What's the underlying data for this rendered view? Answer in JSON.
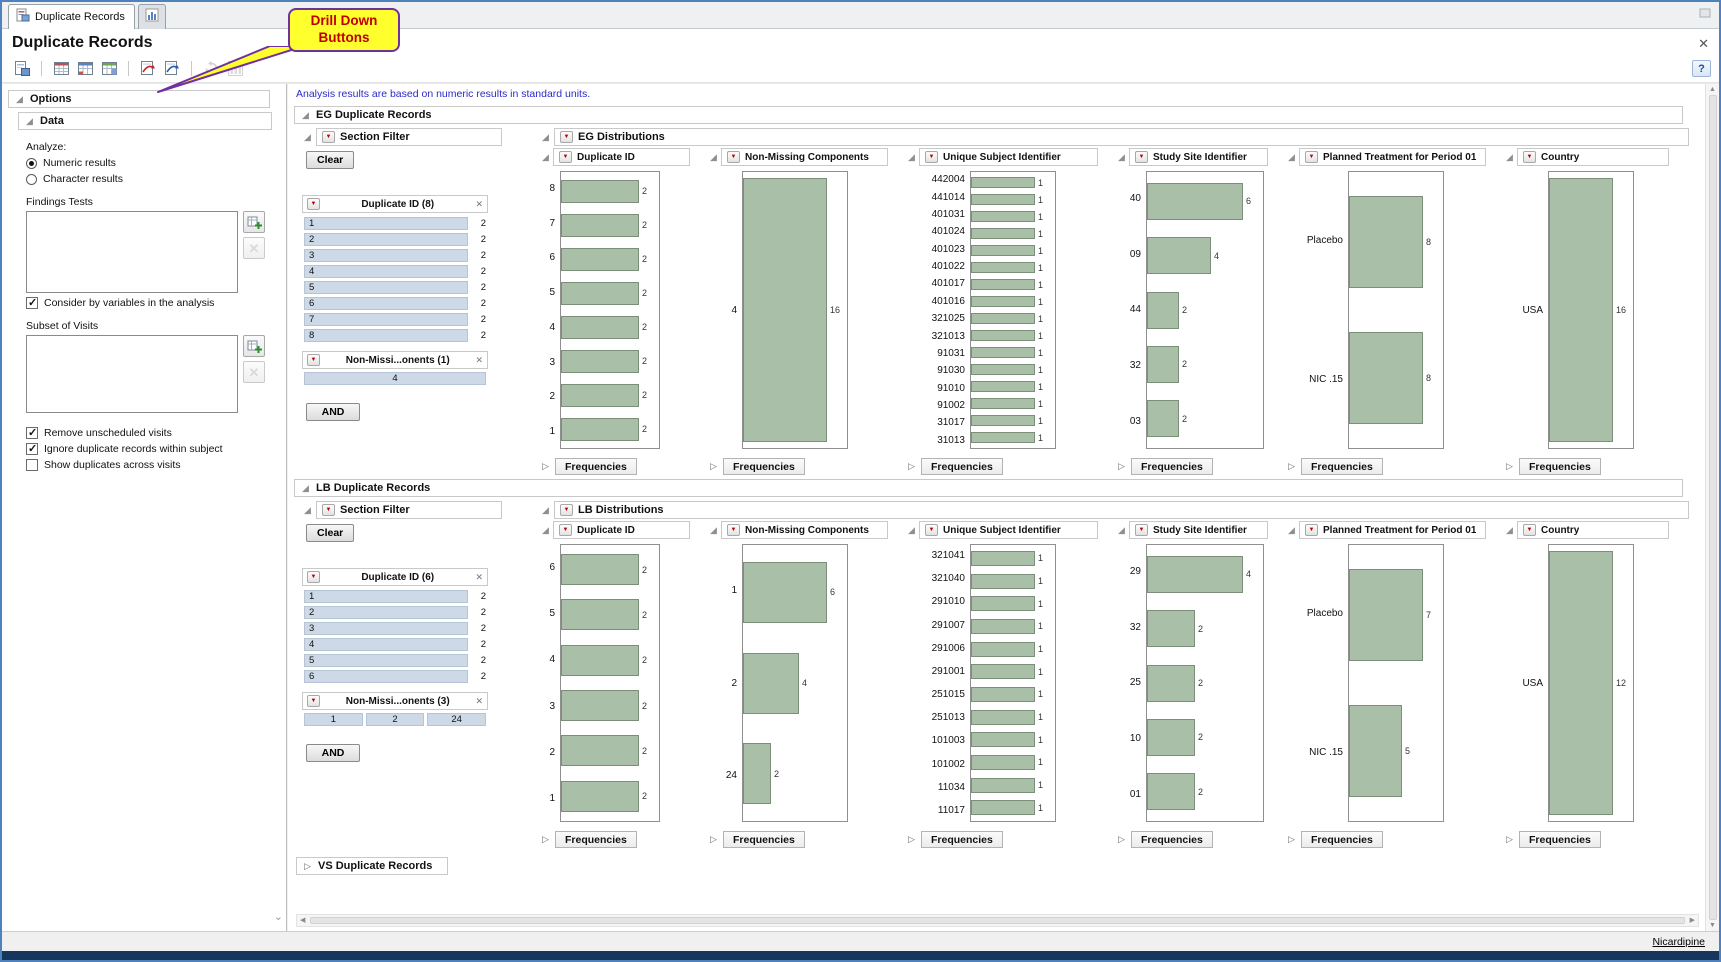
{
  "window": {
    "title": "Duplicate Records",
    "close": "✕",
    "tabs": [
      {
        "label": "Duplicate Records",
        "icon": "report-tab-icon",
        "active": true
      },
      {
        "label": "",
        "icon": "chart-tab-icon",
        "active": false
      }
    ]
  },
  "callout": {
    "text": "Drill Down Buttons"
  },
  "toolbar": {
    "help": "?",
    "groups": [
      {
        "icons": [
          {
            "name": "create-report-icon",
            "disabled": false
          }
        ]
      },
      {
        "icons": [
          {
            "name": "data-table-icon",
            "disabled": false
          },
          {
            "name": "summary-table-icon",
            "disabled": false
          },
          {
            "name": "report-table-icon",
            "disabled": false
          }
        ]
      },
      {
        "icons": [
          {
            "name": "drill-down-subject-icon",
            "disabled": false
          },
          {
            "name": "drill-down-record-icon",
            "disabled": false
          }
        ]
      },
      {
        "icons": [
          {
            "name": "refresh-icon",
            "disabled": true
          },
          {
            "name": "graph-builder-icon",
            "disabled": true
          }
        ]
      }
    ]
  },
  "options_panel": {
    "title": "Options",
    "data_section": {
      "title": "Data",
      "analyze_label": "Analyze:",
      "radios": [
        {
          "label": "Numeric results",
          "selected": true
        },
        {
          "label": "Character results",
          "selected": false
        }
      ],
      "findings_tests_label": "Findings Tests",
      "consider_checkbox": {
        "label": "Consider by variables in the analysis",
        "checked": true
      },
      "subset_label": "Subset of Visits",
      "checkboxes": [
        {
          "label": "Remove unscheduled visits",
          "checked": true
        },
        {
          "label": "Ignore duplicate records within subject",
          "checked": true
        },
        {
          "label": "Show duplicates across visits",
          "checked": false
        }
      ]
    }
  },
  "main": {
    "note": "Analysis results are based on numeric results in standard units.",
    "frequencies_label": "Frequencies",
    "sections": [
      {
        "title": "EG Duplicate Records",
        "filter": {
          "title": "Section Filter",
          "clear_label": "Clear",
          "and_label": "AND",
          "groups": [
            {
              "title": "Duplicate ID (8)",
              "rows": [
                [
                  "1",
                  2
                ],
                [
                  "2",
                  2
                ],
                [
                  "3",
                  2
                ],
                [
                  "4",
                  2
                ],
                [
                  "5",
                  2
                ],
                [
                  "6",
                  2
                ],
                [
                  "7",
                  2
                ],
                [
                  "8",
                  2
                ]
              ]
            },
            {
              "title": "Non-Missi...onents (1)",
              "cells": [
                "4"
              ]
            }
          ]
        },
        "distributions": {
          "title": "EG Distributions",
          "charts": [
            {
              "type": "bar",
              "label": "Duplicate ID",
              "categories": [
                "8",
                "7",
                "6",
                "5",
                "4",
                "3",
                "2",
                "1"
              ],
              "values": [
                2,
                2,
                2,
                2,
                2,
                2,
                2,
                2
              ]
            },
            {
              "type": "bar",
              "label": "Non-Missing Components",
              "categories": [
                "4"
              ],
              "values": [
                16
              ]
            },
            {
              "type": "bar",
              "label": "Unique Subject Identifier",
              "categories": [
                "442004",
                "441014",
                "401031",
                "401024",
                "401023",
                "401022",
                "401017",
                "401016",
                "321025",
                "321013",
                "91031",
                "91030",
                "91010",
                "91002",
                "31017",
                "31013"
              ],
              "values": [
                1,
                1,
                1,
                1,
                1,
                1,
                1,
                1,
                1,
                1,
                1,
                1,
                1,
                1,
                1,
                1
              ]
            },
            {
              "type": "bar",
              "label": "Study Site Identifier",
              "categories": [
                "40",
                "09",
                "44",
                "32",
                "03"
              ],
              "values": [
                6,
                4,
                2,
                2,
                2
              ]
            },
            {
              "type": "bar",
              "label": "Planned Treatment for Period 01",
              "categories": [
                "Placebo",
                "NIC .15"
              ],
              "values": [
                8,
                8
              ]
            },
            {
              "type": "bar",
              "label": "Country",
              "categories": [
                "USA"
              ],
              "values": [
                16
              ]
            }
          ]
        }
      },
      {
        "title": "LB Duplicate Records",
        "filter": {
          "title": "Section Filter",
          "clear_label": "Clear",
          "and_label": "AND",
          "groups": [
            {
              "title": "Duplicate ID (6)",
              "rows": [
                [
                  "1",
                  2
                ],
                [
                  "2",
                  2
                ],
                [
                  "3",
                  2
                ],
                [
                  "4",
                  2
                ],
                [
                  "5",
                  2
                ],
                [
                  "6",
                  2
                ]
              ]
            },
            {
              "title": "Non-Missi...onents (3)",
              "cells": [
                "1",
                "2",
                "24"
              ]
            }
          ]
        },
        "distributions": {
          "title": "LB Distributions",
          "charts": [
            {
              "type": "bar",
              "label": "Duplicate ID",
              "categories": [
                "6",
                "5",
                "4",
                "3",
                "2",
                "1"
              ],
              "values": [
                2,
                2,
                2,
                2,
                2,
                2
              ]
            },
            {
              "type": "bar",
              "label": "Non-Missing Components",
              "categories": [
                "1",
                "2",
                "24"
              ],
              "values": [
                6,
                4,
                2
              ]
            },
            {
              "type": "bar",
              "label": "Unique Subject Identifier",
              "categories": [
                "321041",
                "321040",
                "291010",
                "291007",
                "291006",
                "291001",
                "251015",
                "251013",
                "101003",
                "101002",
                "11034",
                "11017"
              ],
              "values": [
                1,
                1,
                1,
                1,
                1,
                1,
                1,
                1,
                1,
                1,
                1,
                1
              ]
            },
            {
              "type": "bar",
              "label": "Study Site Identifier",
              "categories": [
                "29",
                "32",
                "25",
                "10",
                "01"
              ],
              "values": [
                4,
                2,
                2,
                2,
                2
              ]
            },
            {
              "type": "bar",
              "label": "Planned Treatment for Period 01",
              "categories": [
                "Placebo",
                "NIC .15"
              ],
              "values": [
                7,
                5
              ]
            },
            {
              "type": "bar",
              "label": "Country",
              "categories": [
                "USA"
              ],
              "values": [
                12
              ]
            }
          ]
        }
      }
    ],
    "collapsed_sections": [
      {
        "title": "VS Duplicate Records"
      }
    ]
  },
  "status_bar": {
    "right_text": "Nicardipine"
  }
}
